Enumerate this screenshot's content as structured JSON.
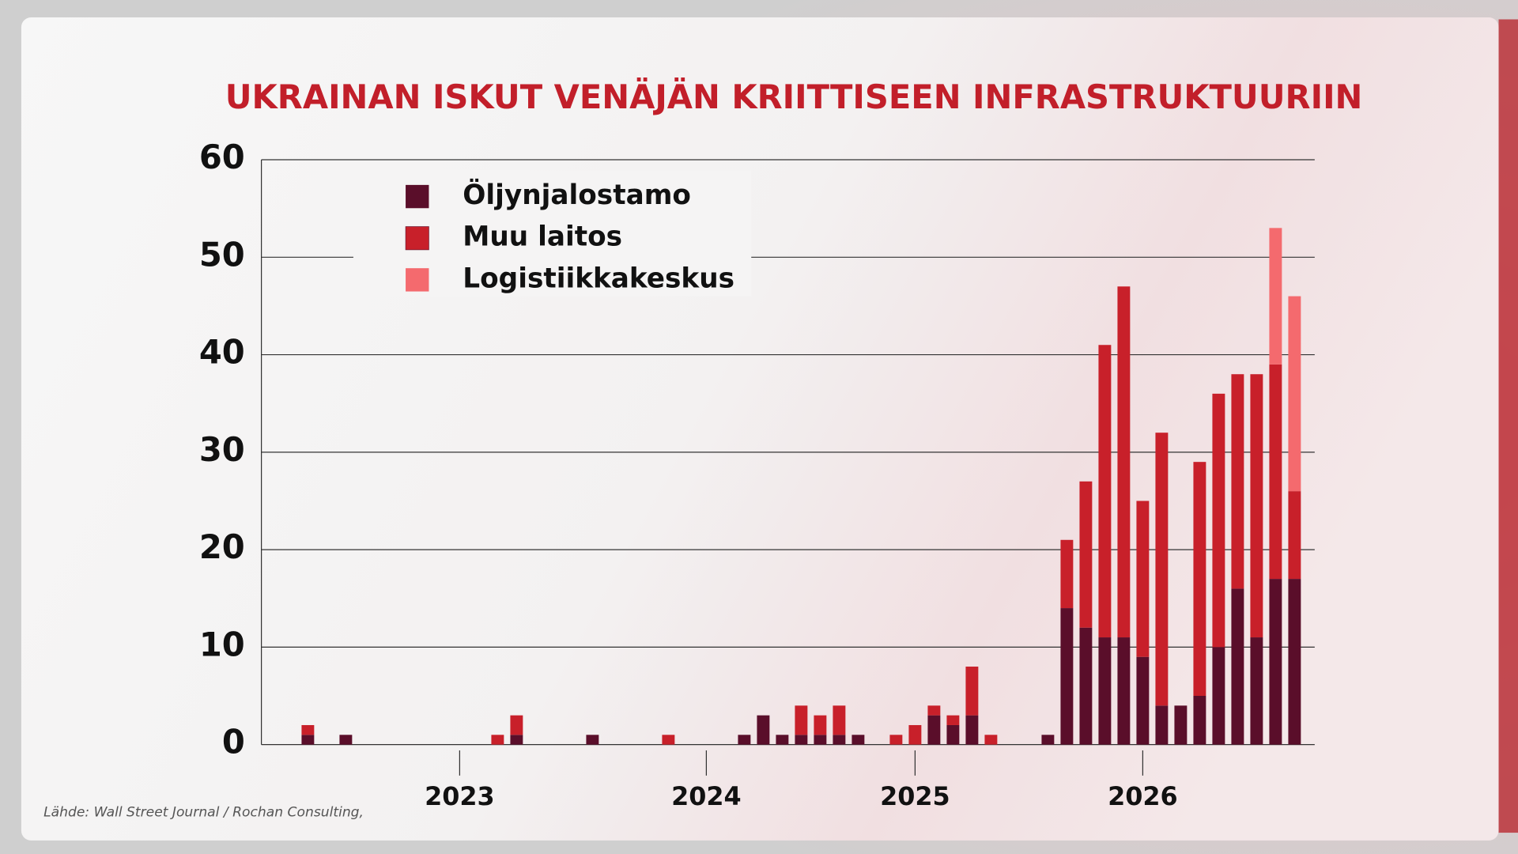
{
  "chart_data": {
    "type": "bar",
    "stacked": true,
    "title": "UKRAINAN ISKUT VENÄJÄN KRIITTISEEN INFRASTRUKTUURIIN",
    "source": "Lähde: Wall Street Journal / Rochan Consulting,",
    "categories": [
      null,
      null,
      null,
      null,
      null,
      null,
      null,
      null,
      "2023",
      null,
      null,
      null,
      null,
      null,
      null,
      null,
      null,
      null,
      null,
      null,
      null,
      "2024",
      null,
      null,
      null,
      null,
      null,
      null,
      null,
      null,
      null,
      null,
      "2025",
      null,
      null,
      null,
      null,
      null,
      null,
      null,
      null,
      null,
      null,
      null,
      "2026",
      null,
      null,
      null,
      null,
      null,
      null,
      null,
      null
    ],
    "series": [
      {
        "name": "Öljynjalostamo",
        "color": "#5a0e2a",
        "values": [
          1,
          0,
          1,
          0,
          0,
          0,
          0,
          0,
          0,
          0,
          0,
          1,
          0,
          0,
          0,
          1,
          0,
          0,
          0,
          0,
          0,
          0,
          0,
          1,
          3,
          1,
          1,
          1,
          1,
          1,
          0,
          0,
          0,
          3,
          2,
          3,
          0,
          0,
          0,
          1,
          14,
          12,
          11,
          11,
          9,
          4,
          4,
          5,
          10,
          16,
          11,
          17,
          17
        ]
      },
      {
        "name": "Muu laitos",
        "color": "#c8202a",
        "values": [
          1,
          0,
          0,
          0,
          0,
          0,
          0,
          0,
          0,
          0,
          1,
          2,
          0,
          0,
          0,
          0,
          0,
          0,
          0,
          1,
          0,
          0,
          0,
          0,
          0,
          0,
          3,
          2,
          3,
          0,
          0,
          1,
          2,
          1,
          1,
          5,
          1,
          0,
          0,
          0,
          7,
          15,
          30,
          36,
          16,
          28,
          0,
          24,
          26,
          22,
          27,
          22,
          9
        ]
      },
      {
        "name": "Logistiikkakeskus",
        "color": "#f46a6e",
        "values": [
          0,
          0,
          0,
          0,
          0,
          0,
          0,
          0,
          0,
          0,
          0,
          0,
          0,
          0,
          0,
          0,
          0,
          0,
          0,
          0,
          0,
          0,
          0,
          0,
          0,
          0,
          0,
          0,
          0,
          0,
          0,
          0,
          0,
          0,
          0,
          0,
          0,
          0,
          0,
          0,
          0,
          0,
          0,
          0,
          0,
          0,
          0,
          0,
          0,
          0,
          0,
          14,
          20
        ]
      }
    ],
    "ylim": [
      0,
      60
    ],
    "yticks": [
      0,
      10,
      20,
      30,
      40,
      50,
      60
    ],
    "grid": true,
    "legend": "top-left"
  }
}
